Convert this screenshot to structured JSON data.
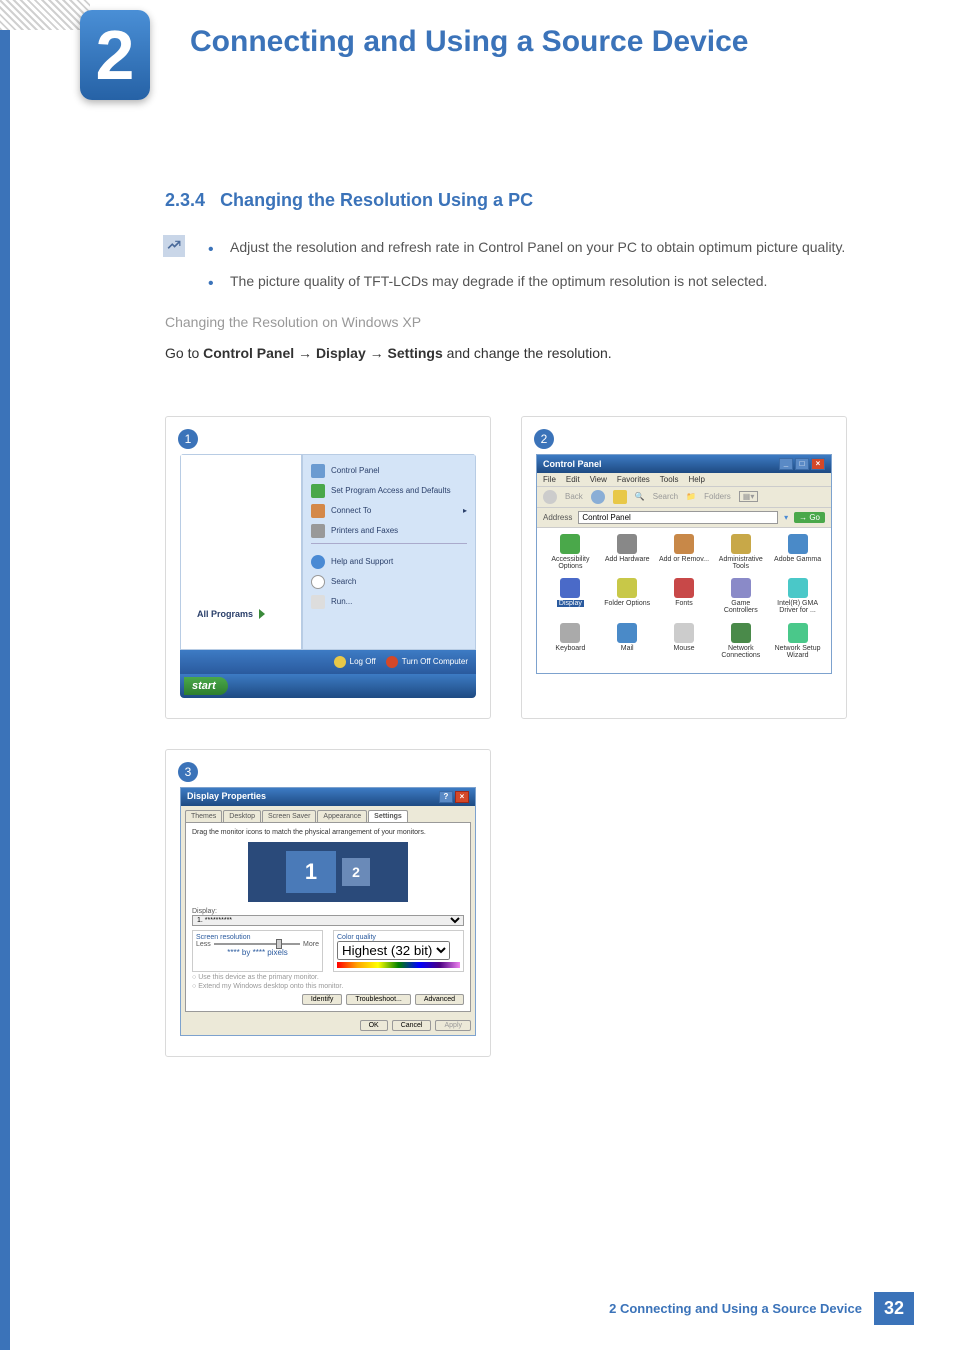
{
  "chapter": {
    "number": "2",
    "title": "Connecting and Using a Source Device"
  },
  "section": {
    "number": "2.3.4",
    "title": "Changing the Resolution Using a PC"
  },
  "bullets": [
    "Adjust the resolution and refresh rate in Control Panel on your PC to obtain optimum picture quality.",
    "The picture quality of TFT-LCDs may degrade if the optimum resolution is not selected."
  ],
  "subhead": "Changing the Resolution on Windows XP",
  "instruction": {
    "pre": "Go to ",
    "b1": "Control Panel",
    "arr": " → ",
    "b2": "Display",
    "b3": "Settings",
    "post": " and change the resolution."
  },
  "start_menu": {
    "items": [
      "Control Panel",
      "Set Program Access and Defaults",
      "Connect To",
      "Printers and Faxes",
      "Help and Support",
      "Search",
      "Run..."
    ],
    "all_programs": "All Programs",
    "logoff": "Log Off",
    "turnoff": "Turn Off Computer",
    "start": "start"
  },
  "control_panel": {
    "title": "Control Panel",
    "menus": [
      "File",
      "Edit",
      "View",
      "Favorites",
      "Tools",
      "Help"
    ],
    "toolbar": {
      "back": "Back",
      "search": "Search",
      "folders": "Folders"
    },
    "address_label": "Address",
    "address_value": "Control Panel",
    "go": "Go",
    "items": [
      "Accessibility Options",
      "Add Hardware",
      "Add or Remov...",
      "Administrative Tools",
      "Adobe Gamma",
      "Display",
      "Folder Options",
      "Fonts",
      "Game Controllers",
      "Intel(R) GMA Driver for ...",
      "Keyboard",
      "Mail",
      "Mouse",
      "Network Connections",
      "Network Setup Wizard"
    ],
    "selected_index": 5
  },
  "display_props": {
    "title": "Display Properties",
    "tabs": [
      "Themes",
      "Desktop",
      "Screen Saver",
      "Appearance",
      "Settings"
    ],
    "active_tab": 4,
    "hint": "Drag the monitor icons to match the physical arrangement of your monitors.",
    "display_label": "Display:",
    "display_value": "1. **********",
    "screen_res": {
      "label": "Screen resolution",
      "less": "Less",
      "more": "More",
      "value": "**** by **** pixels"
    },
    "color_q": {
      "label": "Color quality",
      "value": "Highest (32 bit)"
    },
    "ck1": "Use this device as the primary monitor.",
    "ck2": "Extend my Windows desktop onto this monitor.",
    "btns": [
      "Identify",
      "Troubleshoot...",
      "Advanced"
    ],
    "bottom": [
      "OK",
      "Cancel",
      "Apply"
    ]
  },
  "footer": {
    "text": "2 Connecting and Using a Source Device",
    "page": "32"
  },
  "colors": {
    "primary": "#3b73b9",
    "xp_blue": "#295a9e",
    "xp_taskbar": "#1e4a82"
  }
}
